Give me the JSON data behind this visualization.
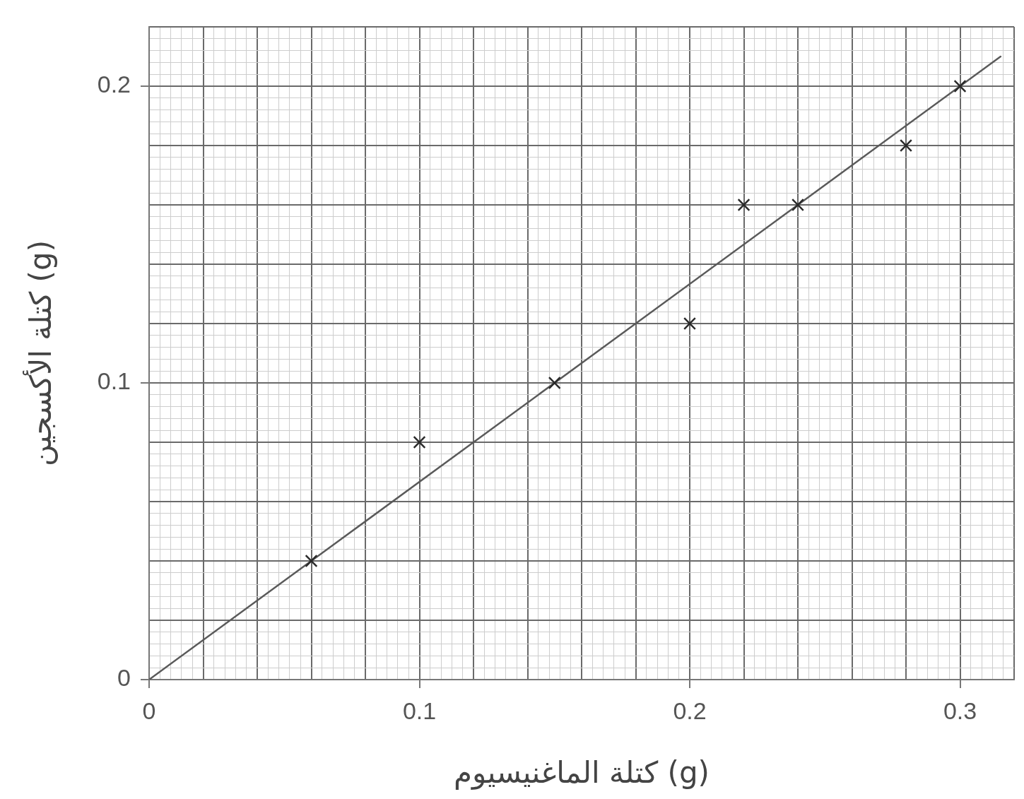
{
  "chart_data": {
    "type": "scatter",
    "xlabel": "كتلة الماغنيسيوم (g)",
    "ylabel": "كتلة الأكسجين (g)",
    "series": [
      {
        "color": "#2a2a2a",
        "x": [
          0.06,
          0.1,
          0.15,
          0.2,
          0.22,
          0.24,
          0.28,
          0.3
        ],
        "values": [
          0.04,
          0.08,
          0.1,
          0.12,
          0.16,
          0.16,
          0.18,
          0.2
        ]
      },
      {
        "type": "line",
        "color": "#5a5a5a",
        "marker": "none",
        "line_style": "solid",
        "x": [
          0,
          0.315
        ],
        "values": [
          0,
          0.21
        ]
      }
    ],
    "marker": "cross",
    "grid": true,
    "xlim": [
      0,
      0.32
    ],
    "ylim": [
      0,
      0.22
    ],
    "xticks": [
      0,
      {
        "value": 0.004,
        "label": null
      },
      {
        "value": 0.008,
        "label": null
      },
      {
        "value": 0.012,
        "label": null
      },
      {
        "value": 0.016,
        "label": null
      },
      {
        "value": 0.02,
        "label": null
      },
      {
        "value": 0.024,
        "label": null
      },
      {
        "value": 0.028,
        "label": null
      },
      {
        "value": 0.032,
        "label": null
      },
      {
        "value": 0.036,
        "label": null
      },
      {
        "value": 0.04,
        "label": null
      },
      {
        "value": 0.044,
        "label": null
      },
      {
        "value": 0.048,
        "label": null
      },
      {
        "value": 0.052,
        "label": null
      },
      {
        "value": 0.056,
        "label": null
      },
      {
        "value": 0.06,
        "label": null
      },
      {
        "value": 0.064,
        "label": null
      },
      {
        "value": 0.068,
        "label": null
      },
      {
        "value": 0.072,
        "label": null
      },
      {
        "value": 0.076,
        "label": null
      },
      {
        "value": 0.08,
        "label": null
      },
      {
        "value": 0.084,
        "label": null
      },
      {
        "value": 0.088,
        "label": null
      },
      {
        "value": 0.092,
        "label": null
      },
      {
        "value": 0.096,
        "label": null
      },
      0.1,
      {
        "value": 0.104,
        "label": null
      },
      {
        "value": 0.108,
        "label": null
      },
      {
        "value": 0.112,
        "label": null
      },
      {
        "value": 0.116,
        "label": null
      },
      {
        "value": 0.12,
        "label": null
      },
      {
        "value": 0.124,
        "label": null
      },
      {
        "value": 0.128,
        "label": null
      },
      {
        "value": 0.132,
        "label": null
      },
      {
        "value": 0.136,
        "label": null
      },
      {
        "value": 0.14,
        "label": null
      },
      {
        "value": 0.144,
        "label": null
      },
      {
        "value": 0.148,
        "label": null
      },
      {
        "value": 0.152,
        "label": null
      },
      {
        "value": 0.156,
        "label": null
      },
      {
        "value": 0.16,
        "label": null
      },
      {
        "value": 0.164,
        "label": null
      },
      {
        "value": 0.168,
        "label": null
      },
      {
        "value": 0.172,
        "label": null
      },
      {
        "value": 0.176,
        "label": null
      },
      {
        "value": 0.18,
        "label": null
      },
      {
        "value": 0.184,
        "label": null
      },
      {
        "value": 0.188,
        "label": null
      },
      {
        "value": 0.192,
        "label": null
      },
      {
        "value": 0.196,
        "label": null
      },
      0.2,
      {
        "value": 0.204,
        "label": null
      },
      {
        "value": 0.208,
        "label": null
      },
      {
        "value": 0.212,
        "label": null
      },
      {
        "value": 0.216,
        "label": null
      },
      {
        "value": 0.22,
        "label": null
      },
      {
        "value": 0.224,
        "label": null
      },
      {
        "value": 0.228,
        "label": null
      },
      {
        "value": 0.232,
        "label": null
      },
      {
        "value": 0.236,
        "label": null
      },
      {
        "value": 0.24,
        "label": null
      },
      {
        "value": 0.244,
        "label": null
      },
      {
        "value": 0.248,
        "label": null
      },
      {
        "value": 0.252,
        "label": null
      },
      {
        "value": 0.256,
        "label": null
      },
      {
        "value": 0.26,
        "label": null
      },
      {
        "value": 0.264,
        "label": null
      },
      {
        "value": 0.268,
        "label": null
      },
      {
        "value": 0.272,
        "label": null
      },
      {
        "value": 0.276,
        "label": null
      },
      {
        "value": 0.28,
        "label": null
      },
      {
        "value": 0.284,
        "label": null
      },
      {
        "value": 0.288,
        "label": null
      },
      {
        "value": 0.292,
        "label": null
      },
      {
        "value": 0.296,
        "label": null
      },
      0.3,
      {
        "value": 0.304,
        "label": null
      },
      {
        "value": 0.308,
        "label": null
      },
      {
        "value": 0.312,
        "label": null
      },
      {
        "value": 0.316,
        "label": null
      },
      {
        "value": 0.32,
        "label": null
      }
    ],
    "yticks": [
      0,
      {
        "value": 0.004,
        "label": null
      },
      {
        "value": 0.008,
        "label": null
      },
      {
        "value": 0.012,
        "label": null
      },
      {
        "value": 0.016,
        "label": null
      },
      {
        "value": 0.02,
        "label": null
      },
      {
        "value": 0.024,
        "label": null
      },
      {
        "value": 0.028,
        "label": null
      },
      {
        "value": 0.032,
        "label": null
      },
      {
        "value": 0.036,
        "label": null
      },
      {
        "value": 0.04,
        "label": null
      },
      {
        "value": 0.044,
        "label": null
      },
      {
        "value": 0.048,
        "label": null
      },
      {
        "value": 0.052,
        "label": null
      },
      {
        "value": 0.056,
        "label": null
      },
      {
        "value": 0.06,
        "label": null
      },
      {
        "value": 0.064,
        "label": null
      },
      {
        "value": 0.068,
        "label": null
      },
      {
        "value": 0.072,
        "label": null
      },
      {
        "value": 0.076,
        "label": null
      },
      {
        "value": 0.08,
        "label": null
      },
      {
        "value": 0.084,
        "label": null
      },
      {
        "value": 0.088,
        "label": null
      },
      {
        "value": 0.092,
        "label": null
      },
      {
        "value": 0.096,
        "label": null
      },
      0.1,
      {
        "value": 0.104,
        "label": null
      },
      {
        "value": 0.108,
        "label": null
      },
      {
        "value": 0.112,
        "label": null
      },
      {
        "value": 0.116,
        "label": null
      },
      {
        "value": 0.12,
        "label": null
      },
      {
        "value": 0.124,
        "label": null
      },
      {
        "value": 0.128,
        "label": null
      },
      {
        "value": 0.132,
        "label": null
      },
      {
        "value": 0.136,
        "label": null
      },
      {
        "value": 0.14,
        "label": null
      },
      {
        "value": 0.144,
        "label": null
      },
      {
        "value": 0.148,
        "label": null
      },
      {
        "value": 0.152,
        "label": null
      },
      {
        "value": 0.156,
        "label": null
      },
      {
        "value": 0.16,
        "label": null
      },
      {
        "value": 0.164,
        "label": null
      },
      {
        "value": 0.168,
        "label": null
      },
      {
        "value": 0.172,
        "label": null
      },
      {
        "value": 0.176,
        "label": null
      },
      {
        "value": 0.18,
        "label": null
      },
      {
        "value": 0.184,
        "label": null
      },
      {
        "value": 0.188,
        "label": null
      },
      {
        "value": 0.192,
        "label": null
      },
      {
        "value": 0.196,
        "label": null
      },
      0.2,
      {
        "value": 0.204,
        "label": null
      },
      {
        "value": 0.208,
        "label": null
      },
      {
        "value": 0.212,
        "label": null
      },
      {
        "value": 0.216,
        "label": null
      },
      {
        "value": 0.22,
        "label": null
      }
    ]
  }
}
